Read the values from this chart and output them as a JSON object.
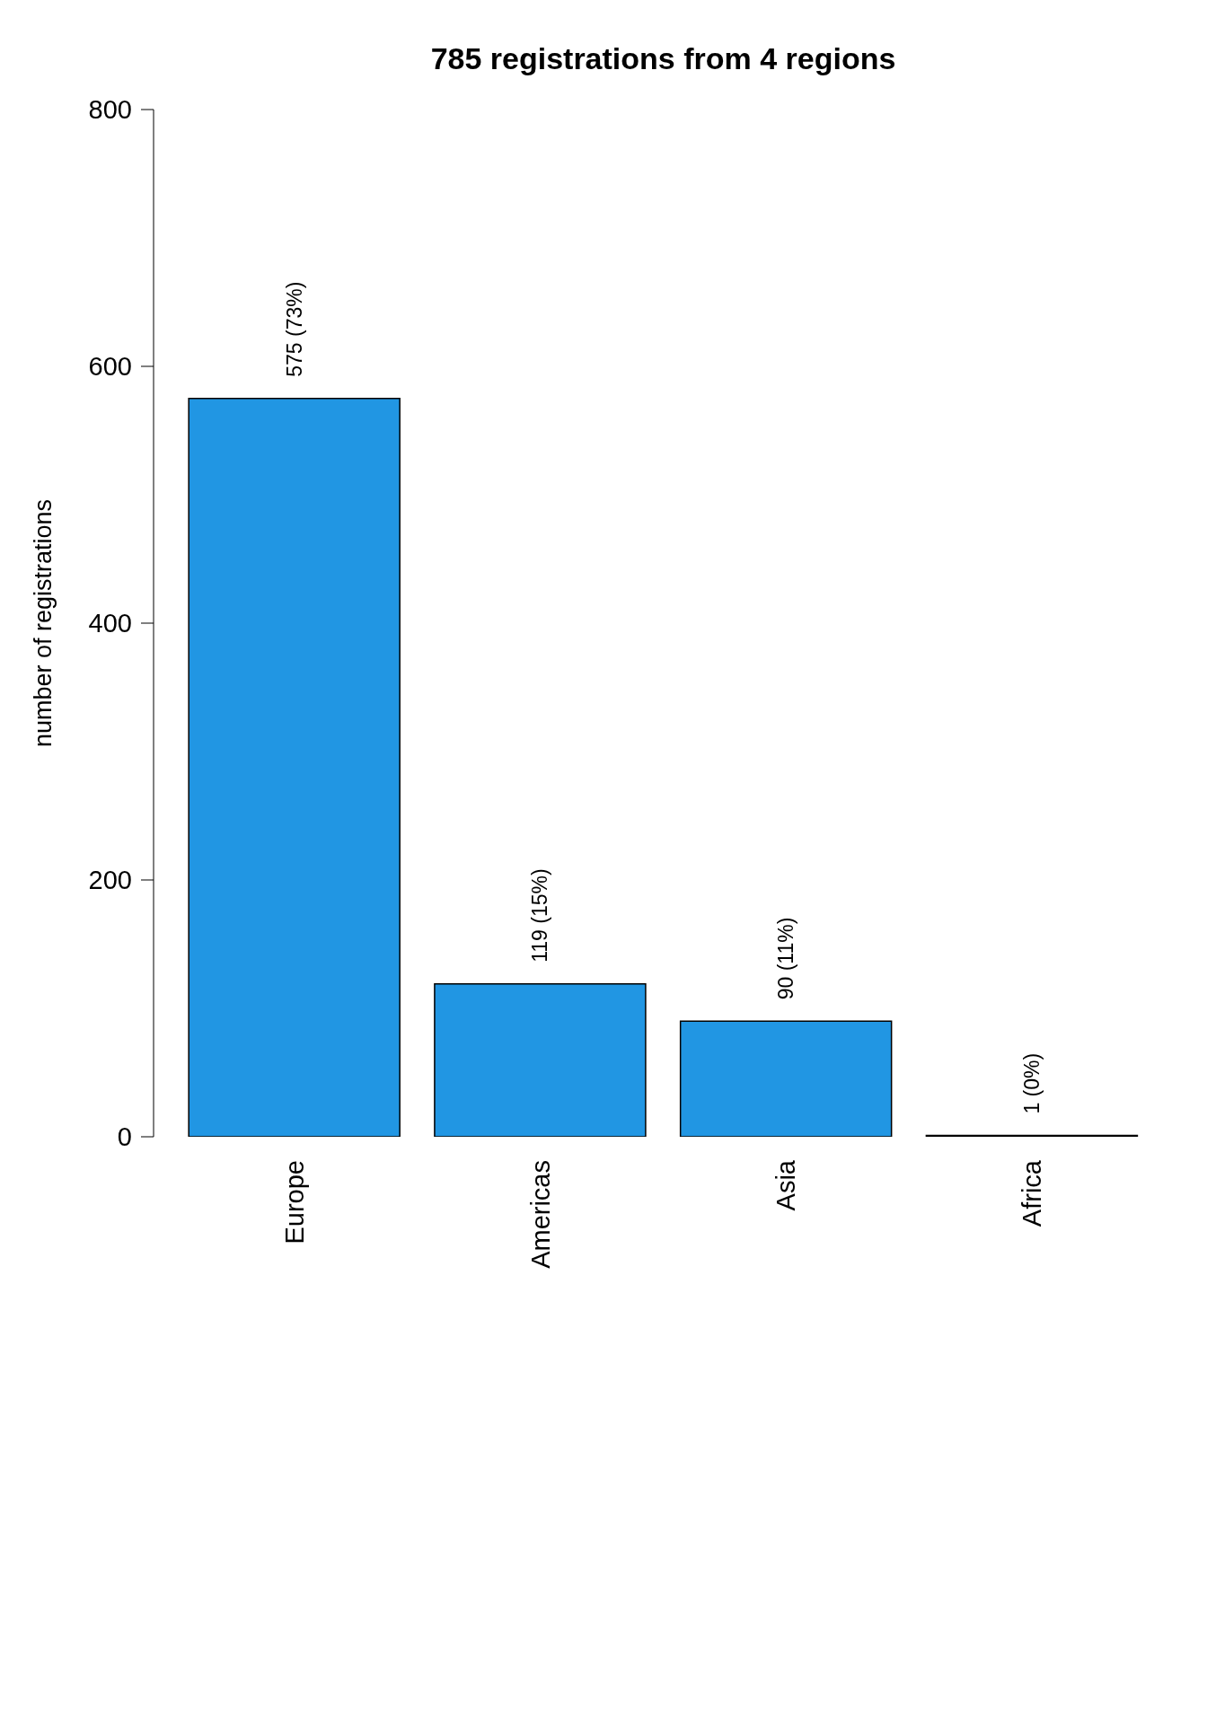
{
  "chart_data": {
    "type": "bar",
    "title": "785 registrations from 4 regions",
    "ylabel": "number of registrations",
    "categories": [
      "Europe",
      "Americas",
      "Asia",
      "Africa"
    ],
    "values": [
      575,
      119,
      90,
      1
    ],
    "value_labels": [
      "575 (73%)",
      "119 (15%)",
      "90 (11%)",
      "1 (0%)"
    ],
    "color": "#2196e3",
    "ylim": [
      0,
      800
    ],
    "yticks": [
      0,
      200,
      400,
      600,
      800
    ],
    "grid": false,
    "legend": false
  }
}
